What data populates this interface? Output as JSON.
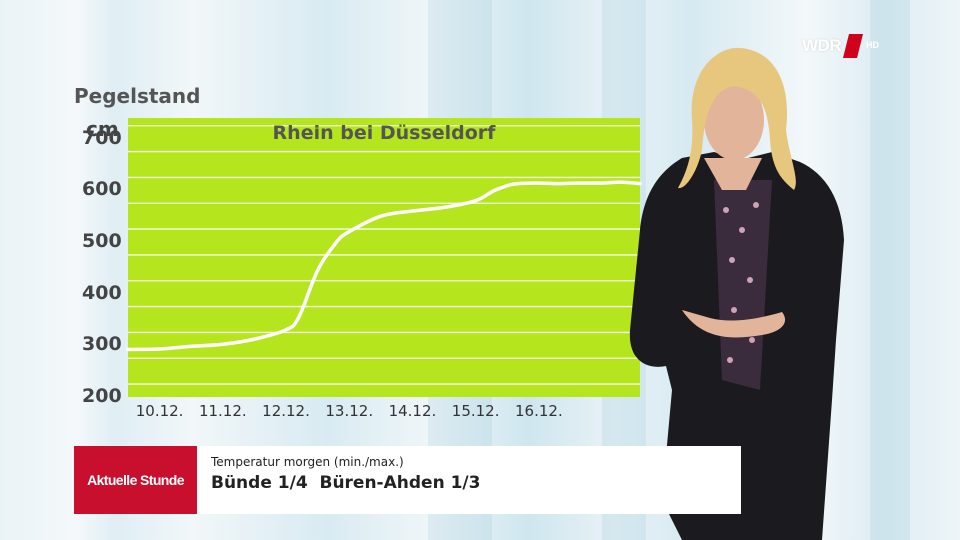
{
  "broadcaster": {
    "logo_text": "WDR",
    "logo_badge": "HD",
    "accent_color": "#d0021b"
  },
  "chart_data": {
    "type": "line",
    "title": "Rhein bei Düsseldorf",
    "unit_title": "Pegelstand",
    "ylabel": "cm",
    "ylim": [
      200,
      740
    ],
    "yticks": [
      "700",
      "600",
      "500",
      "400",
      "300",
      "200"
    ],
    "categories": [
      "10.12.",
      "11.12.",
      "12.12.",
      "13.12.",
      "14.12.",
      "15.12.",
      "16.12."
    ],
    "x": [
      9.5,
      10,
      10.5,
      11,
      11.5,
      12,
      12.2,
      12.5,
      12.8,
      13,
      13.5,
      14,
      14.5,
      15,
      15.3,
      15.6,
      16,
      16.3,
      16.6,
      17,
      17.3,
      17.6
    ],
    "values": [
      292,
      293,
      298,
      302,
      312,
      330,
      354,
      445,
      500,
      520,
      550,
      560,
      567,
      580,
      600,
      612,
      614,
      613,
      614,
      614,
      616,
      613
    ],
    "background_color": "#b5e61d",
    "line_color": "#ffffff",
    "grid": true
  },
  "lower_third": {
    "brand": "Aktuelle Stunde",
    "brand_color": "#c8102e",
    "caption": "Temperatur morgen (min./max.)",
    "line": "Bünde 1/4  Büren-Ahden 1/3"
  }
}
